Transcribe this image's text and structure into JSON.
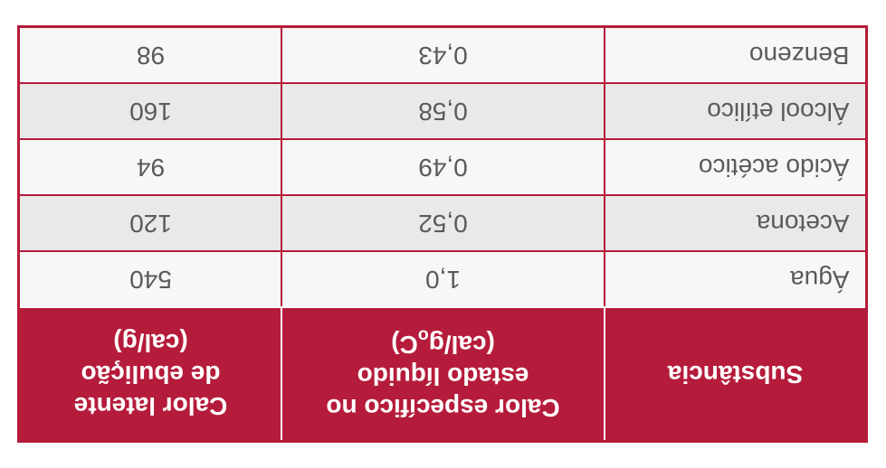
{
  "header": {
    "col1": "Substância",
    "col2_line1": "Calor específico no",
    "col2_line2": "estado líquido",
    "col2_line3_prefix": "(cal/g",
    "col2_line3_sub": "o",
    "col2_line3_suffix": "C)",
    "col3_line1": "Calor latente",
    "col3_line2": "de ebulição",
    "col3_line3": "(cal/g)"
  },
  "rows": [
    {
      "substance": "Água",
      "specific_heat": "1,0",
      "latent_heat": "540"
    },
    {
      "substance": "Acetona",
      "specific_heat": "0,52",
      "latent_heat": "120"
    },
    {
      "substance": "Ácido acético",
      "specific_heat": "0,49",
      "latent_heat": "94"
    },
    {
      "substance": "Álcool etílico",
      "specific_heat": "0,58",
      "latent_heat": "160"
    },
    {
      "substance": "Benzeno",
      "specific_heat": "0,43",
      "latent_heat": "98"
    }
  ],
  "style": {
    "header_bg": "#b51b3a",
    "header_fg": "#ffffff",
    "row_bg": "#e9e9e9",
    "row_alt_bg": "#f7f7f7",
    "border_color": "#b51b3a",
    "text_color": "#5a5a5a",
    "header_fontsize": 28,
    "cell_fontsize": 28
  }
}
